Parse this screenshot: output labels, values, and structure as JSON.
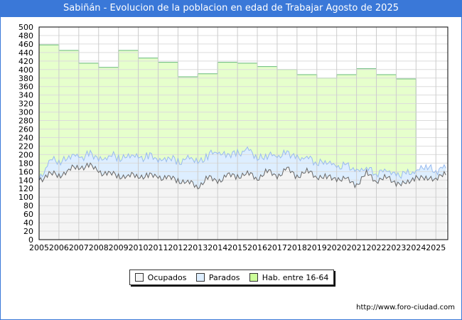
{
  "title": "Sabiñán - Evolucion de la poblacion en edad de Trabajar Agosto de 2025",
  "url": "http://www.foro-ciudad.com",
  "chart_data": {
    "type": "area",
    "title": "Sabiñán - Evolucion de la poblacion en edad de Trabajar Agosto de 2025",
    "xlabel": "",
    "ylabel": "",
    "ylim": [
      0,
      500
    ],
    "xlim": [
      2005,
      2025.6
    ],
    "yticks": [
      0,
      20,
      40,
      60,
      80,
      100,
      120,
      140,
      160,
      180,
      200,
      220,
      240,
      260,
      280,
      300,
      320,
      340,
      360,
      380,
      400,
      420,
      440,
      460,
      480,
      500
    ],
    "xticks": [
      "2005",
      "2006",
      "2007",
      "2008",
      "2009",
      "2010",
      "2011",
      "2012",
      "2013",
      "2014",
      "2015",
      "2016",
      "2017",
      "2018",
      "2019",
      "2020",
      "2021",
      "2022",
      "2023",
      "2024",
      "2025"
    ],
    "grid": true,
    "legend_position": "bottom",
    "legend": [
      "Ocupados",
      "Parados",
      "Hab. entre 16-64"
    ],
    "colors": {
      "ocupados": "#f4f4f4",
      "ocupados_line": "#666666",
      "parados": "#ddeeff",
      "parados_line": "#99bbee",
      "hab": "#e6ffcc",
      "hab_line": "#66bb77"
    },
    "hab": {
      "years": [
        2005,
        2006,
        2007,
        2008,
        2009,
        2010,
        2011,
        2012,
        2013,
        2014,
        2015,
        2016,
        2017,
        2018,
        2019,
        2020,
        2021,
        2022,
        2023
      ],
      "values": [
        458,
        445,
        415,
        405,
        445,
        427,
        417,
        383,
        390,
        417,
        415,
        407,
        400,
        388,
        380,
        388,
        402,
        388,
        378
      ]
    },
    "x": [
      2005,
      2005.5,
      2006,
      2006.5,
      2007,
      2007.5,
      2008,
      2008.5,
      2009,
      2009.5,
      2010,
      2010.5,
      2011,
      2011.5,
      2012,
      2012.5,
      2013,
      2013.5,
      2014,
      2014.5,
      2015,
      2015.5,
      2016,
      2016.5,
      2017,
      2017.5,
      2018,
      2018.5,
      2019,
      2019.5,
      2020,
      2020.5,
      2021,
      2021.5,
      2022,
      2022.5,
      2023,
      2023.5,
      2024,
      2024.5,
      2025,
      2025.5
    ],
    "series": [
      {
        "name": "Ocupados",
        "values": [
          140,
          155,
          150,
          165,
          170,
          175,
          160,
          155,
          150,
          150,
          150,
          150,
          148,
          145,
          140,
          135,
          125,
          145,
          138,
          150,
          150,
          155,
          145,
          160,
          150,
          165,
          150,
          160,
          150,
          145,
          145,
          140,
          130,
          155,
          140,
          145,
          135,
          128,
          150,
          140,
          148,
          152
        ]
      },
      {
        "name": "Parados",
        "values": [
          0,
          30,
          35,
          30,
          25,
          25,
          30,
          40,
          45,
          45,
          45,
          45,
          42,
          45,
          45,
          55,
          60,
          50,
          72,
          45,
          55,
          55,
          50,
          35,
          50,
          35,
          45,
          30,
          35,
          35,
          30,
          30,
          35,
          10,
          20,
          15,
          20,
          22,
          15,
          30,
          17,
          16
        ]
      }
    ]
  }
}
